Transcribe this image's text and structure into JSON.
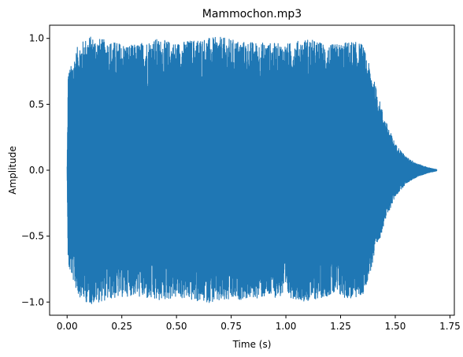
{
  "chart_data": {
    "type": "line",
    "title": "Mammochon.mp3",
    "xlabel": "Time (s)",
    "ylabel": "Amplitude",
    "xlim": [
      -0.08,
      1.77
    ],
    "ylim": [
      -1.1,
      1.1
    ],
    "xticks": [
      0.0,
      0.25,
      0.5,
      0.75,
      1.0,
      1.25,
      1.5,
      1.75
    ],
    "xtick_labels": [
      "0.00",
      "0.25",
      "0.50",
      "0.75",
      "1.00",
      "1.25",
      "1.50",
      "1.75"
    ],
    "yticks": [
      -1.0,
      -0.5,
      0.0,
      0.5,
      1.0
    ],
    "ytick_labels": [
      "−1.0",
      "−0.5",
      "0.0",
      "0.5",
      "1.0"
    ],
    "grid": false,
    "series": [
      {
        "color": "#1f77b4",
        "duration_s": 1.69,
        "envelope": [
          [
            0.0,
            0.03
          ],
          [
            0.005,
            0.75
          ],
          [
            0.02,
            0.8
          ],
          [
            0.05,
            0.95
          ],
          [
            0.1,
            1.02
          ],
          [
            0.2,
            0.98
          ],
          [
            0.3,
            0.95
          ],
          [
            0.4,
            1.0
          ],
          [
            0.5,
            0.97
          ],
          [
            0.6,
            1.0
          ],
          [
            0.7,
            1.01
          ],
          [
            0.8,
            0.98
          ],
          [
            0.9,
            0.97
          ],
          [
            1.0,
            0.96
          ],
          [
            1.1,
            1.0
          ],
          [
            1.2,
            0.95
          ],
          [
            1.3,
            0.98
          ],
          [
            1.35,
            0.96
          ],
          [
            1.4,
            0.7
          ],
          [
            1.45,
            0.4
          ],
          [
            1.5,
            0.2
          ],
          [
            1.55,
            0.1
          ],
          [
            1.6,
            0.05
          ],
          [
            1.65,
            0.02
          ],
          [
            1.69,
            0.005
          ]
        ]
      }
    ]
  }
}
